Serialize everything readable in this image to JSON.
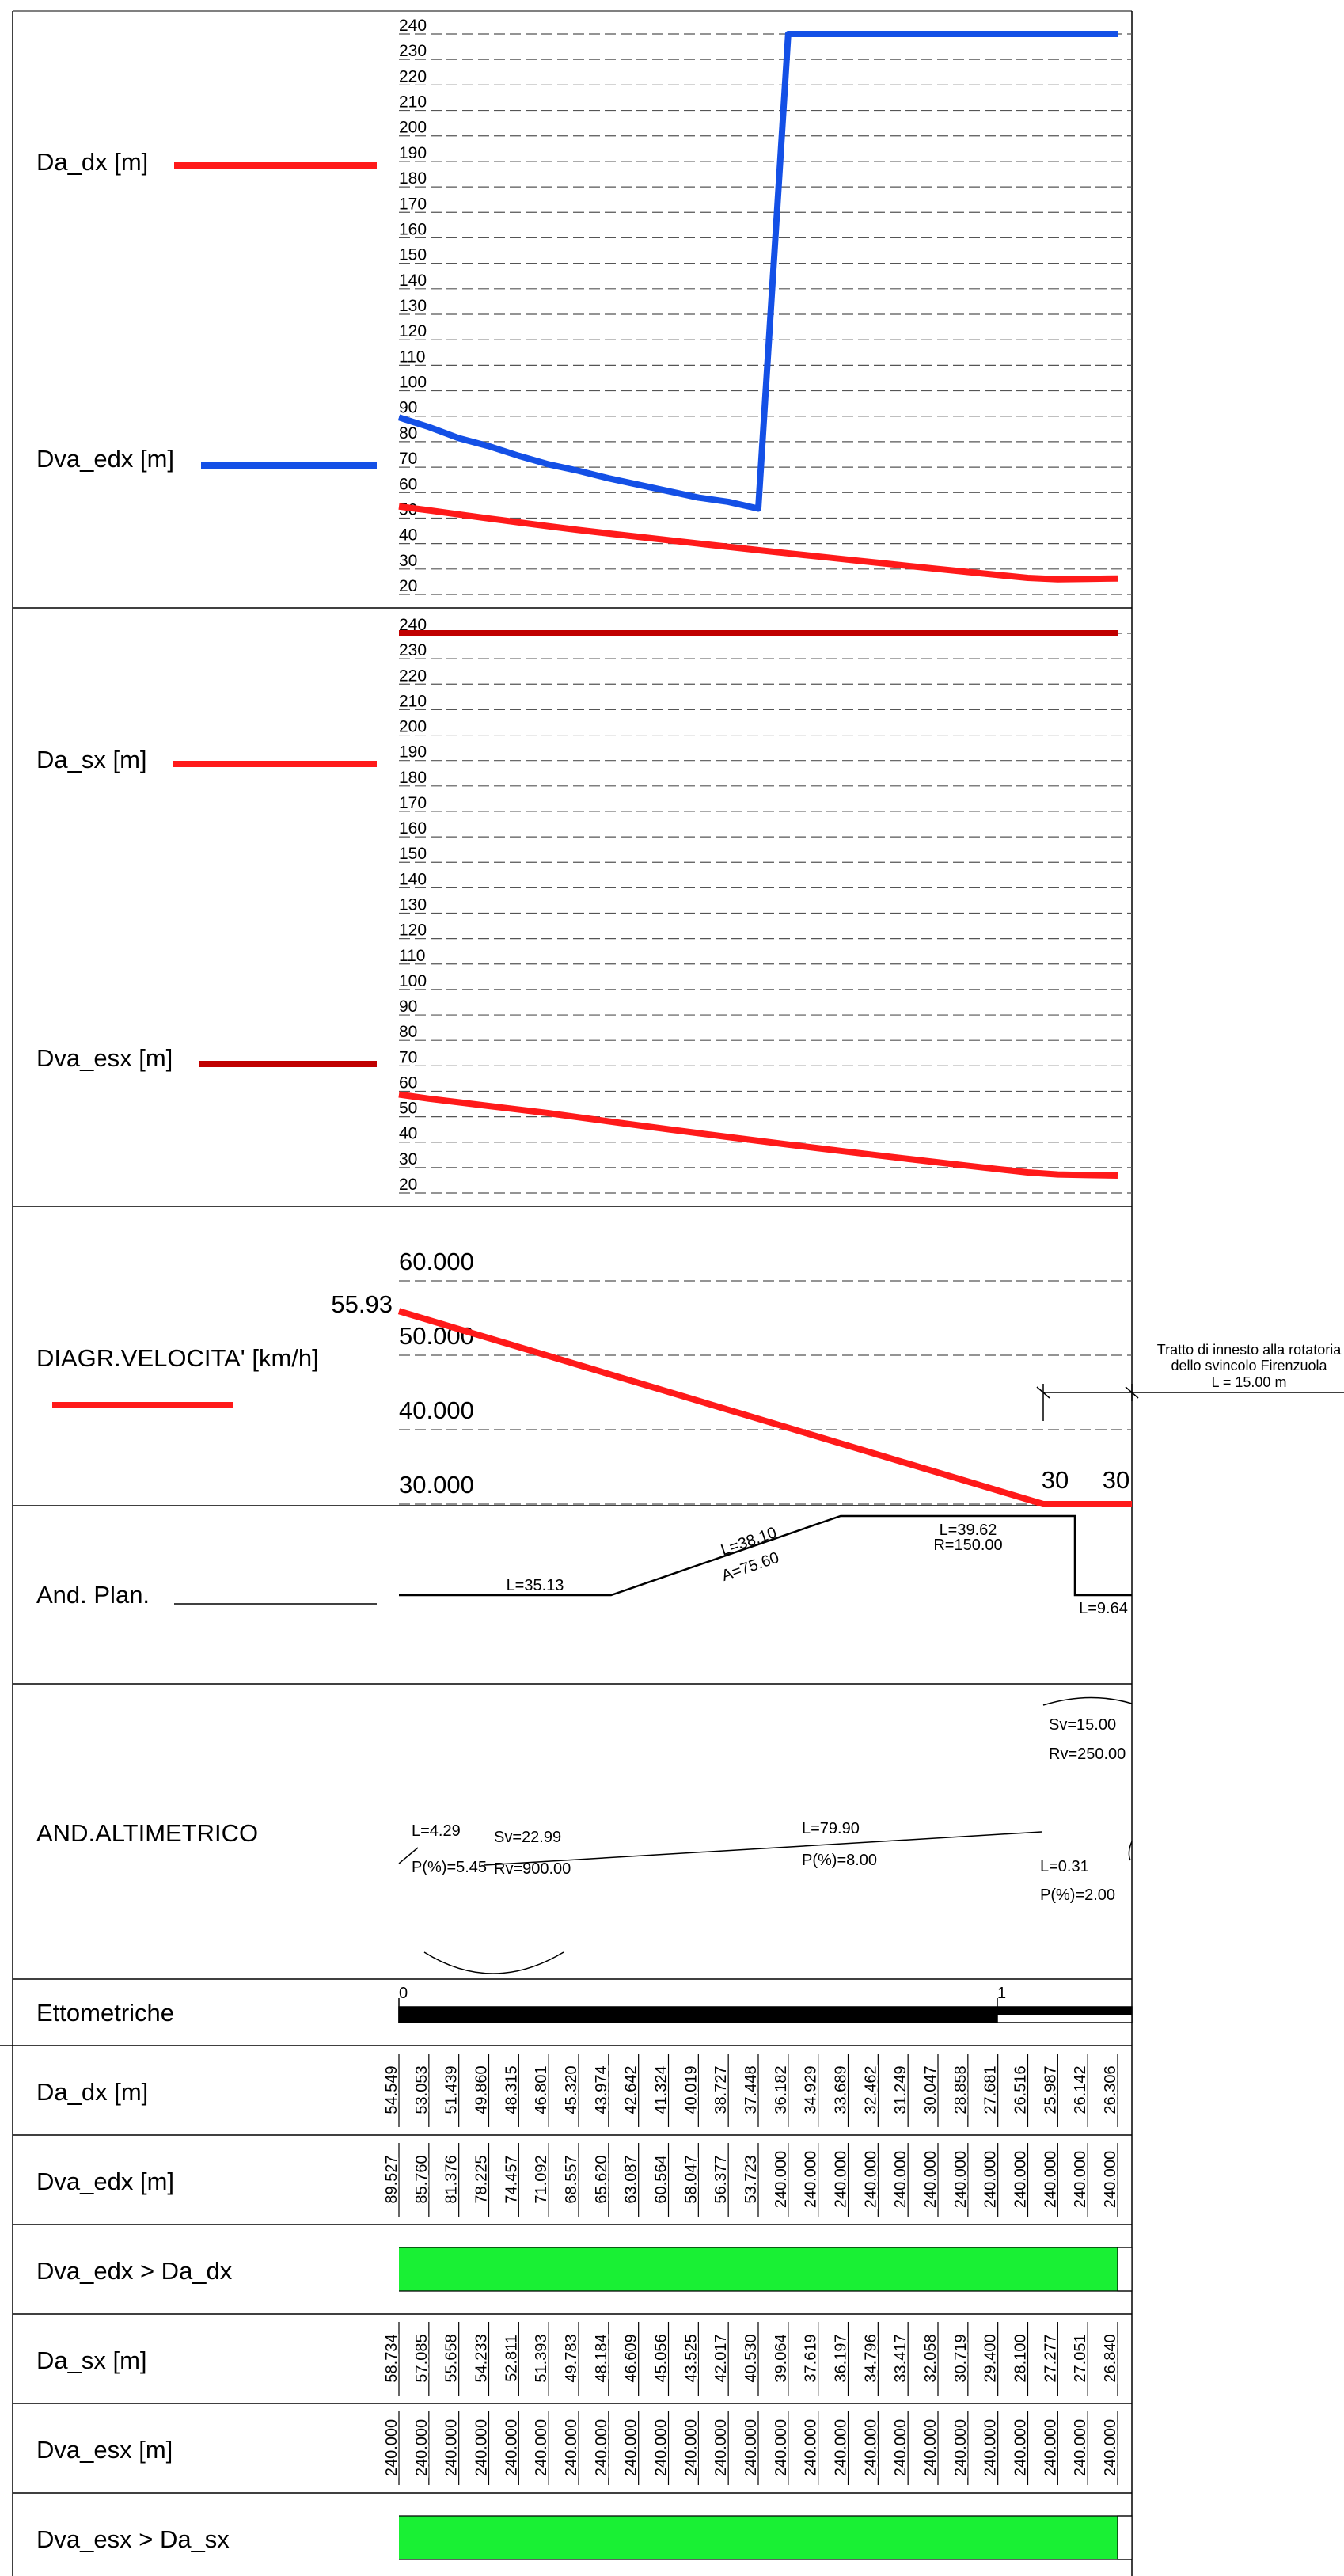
{
  "chart_data": {
    "type": "line",
    "station_ticks": [
      "0",
      "1"
    ],
    "panel1": {
      "y_ticks": [
        240,
        230,
        220,
        210,
        200,
        190,
        180,
        170,
        160,
        150,
        140,
        130,
        120,
        110,
        100,
        90,
        80,
        70,
        60,
        50,
        40,
        30,
        20
      ],
      "ylim": [
        20,
        240
      ],
      "legend": {
        "da_dx": "Da_dx [m]",
        "dva_edx": "Dva_edx [m]"
      },
      "series": [
        {
          "name": "Da_dx [m]",
          "color": "#ff1a1a",
          "values": [
            54.549,
            53.053,
            51.439,
            49.86,
            48.315,
            46.801,
            45.32,
            43.974,
            42.642,
            41.324,
            40.019,
            38.727,
            37.448,
            36.182,
            34.929,
            33.689,
            32.462,
            31.249,
            30.047,
            28.858,
            27.681,
            26.516,
            25.987,
            26.142,
            26.306
          ]
        },
        {
          "name": "Dva_edx [m]",
          "color": "#1450e6",
          "values": [
            89.527,
            85.76,
            81.376,
            78.225,
            74.457,
            71.092,
            68.557,
            65.62,
            63.087,
            60.564,
            58.047,
            56.377,
            53.723,
            240,
            240,
            240,
            240,
            240,
            240,
            240,
            240,
            240,
            240,
            240,
            240
          ]
        }
      ]
    },
    "panel2": {
      "y_ticks": [
        240,
        230,
        220,
        210,
        200,
        190,
        180,
        170,
        160,
        150,
        140,
        130,
        120,
        110,
        100,
        90,
        80,
        70,
        60,
        50,
        40,
        30,
        20
      ],
      "ylim": [
        20,
        240
      ],
      "legend": {
        "da_sx": "Da_sx [m]",
        "dva_esx": "Dva_esx [m]"
      },
      "series": [
        {
          "name": "Da_sx [m]",
          "color": "#ff1a1a",
          "values": [
            58.734,
            57.085,
            55.658,
            54.233,
            52.811,
            51.393,
            49.783,
            48.184,
            46.609,
            45.056,
            43.525,
            42.017,
            40.53,
            39.064,
            37.619,
            36.197,
            34.796,
            33.417,
            32.058,
            30.719,
            29.4,
            28.1,
            27.277,
            27.051,
            26.84
          ]
        },
        {
          "name": "Dva_esx [m]",
          "color": "#c00000",
          "values": [
            240,
            240,
            240,
            240,
            240,
            240,
            240,
            240,
            240,
            240,
            240,
            240,
            240,
            240,
            240,
            240,
            240,
            240,
            240,
            240,
            240,
            240,
            240,
            240,
            240
          ]
        }
      ]
    },
    "speed": {
      "label": "DIAGR.VELOCITA' [km/h]",
      "y_ticks": [
        "60.000",
        "50.000",
        "40.000",
        "30.000"
      ],
      "ylim": [
        30,
        60
      ],
      "start_value": "55.93",
      "end_values": [
        "30",
        "30"
      ],
      "color": "#ff1a1a",
      "note": [
        "Tratto di innesto alla rotatoria",
        "dello  svincolo Firenzuola",
        "L = 15.00 m"
      ]
    },
    "planimetric": {
      "label": "And. Plan.",
      "elements": [
        "L=35.13",
        "L=38.10",
        "A=75.60",
        "L=39.62",
        "R=150.00",
        "L=9.64"
      ]
    },
    "altimetric": {
      "label": "AND.ALTIMETRICO",
      "elements": [
        "L=4.29",
        "P(%)=5.45",
        "Sv=22.99",
        "Rv=900.00",
        "L=79.90",
        "P(%)=8.00",
        "Sv=15.00",
        "Rv=250.00",
        "L=0.31",
        "P(%)=2.00"
      ]
    },
    "table": {
      "ettometriche": "Ettometriche",
      "rows": [
        {
          "label": "Da_dx [m]",
          "values": [
            "54.549",
            "53.053",
            "51.439",
            "49.860",
            "48.315",
            "46.801",
            "45.320",
            "43.974",
            "42.642",
            "41.324",
            "40.019",
            "38.727",
            "37.448",
            "36.182",
            "34.929",
            "33.689",
            "32.462",
            "31.249",
            "30.047",
            "28.858",
            "27.681",
            "26.516",
            "25.987",
            "26.142",
            "26.306"
          ]
        },
        {
          "label": "Dva_edx [m]",
          "values": [
            "89.527",
            "85.760",
            "81.376",
            "78.225",
            "74.457",
            "71.092",
            "68.557",
            "65.620",
            "63.087",
            "60.564",
            "58.047",
            "56.377",
            "53.723",
            "240.000",
            "240.000",
            "240.000",
            "240.000",
            "240.000",
            "240.000",
            "240.000",
            "240.000",
            "240.000",
            "240.000",
            "240.000",
            "240.000"
          ]
        },
        {
          "label": "Dva_edx > Da_dx",
          "check": true,
          "color": "#19f034"
        },
        {
          "label": "Da_sx [m]",
          "values": [
            "58.734",
            "57.085",
            "55.658",
            "54.233",
            "52.811",
            "51.393",
            "49.783",
            "48.184",
            "46.609",
            "45.056",
            "43.525",
            "42.017",
            "40.530",
            "39.064",
            "37.619",
            "36.197",
            "34.796",
            "33.417",
            "32.058",
            "30.719",
            "29.400",
            "28.100",
            "27.277",
            "27.051",
            "26.840"
          ]
        },
        {
          "label": "Dva_esx [m]",
          "values": [
            "240.000",
            "240.000",
            "240.000",
            "240.000",
            "240.000",
            "240.000",
            "240.000",
            "240.000",
            "240.000",
            "240.000",
            "240.000",
            "240.000",
            "240.000",
            "240.000",
            "240.000",
            "240.000",
            "240.000",
            "240.000",
            "240.000",
            "240.000",
            "240.000",
            "240.000",
            "240.000",
            "240.000",
            "240.000"
          ]
        },
        {
          "label": "Dva_esx > Da_sx",
          "check": true,
          "color": "#19f034"
        }
      ]
    }
  }
}
